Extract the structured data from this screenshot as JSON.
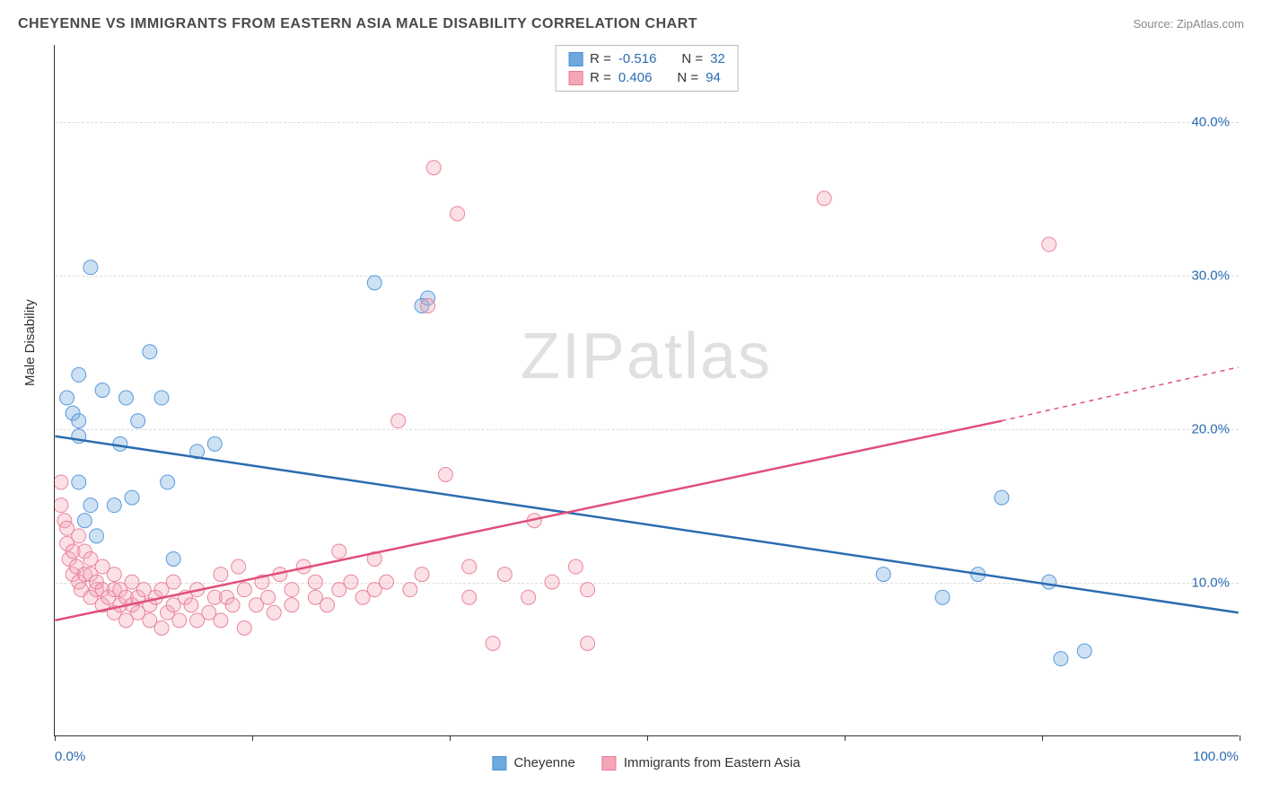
{
  "header": {
    "title": "CHEYENNE VS IMMIGRANTS FROM EASTERN ASIA MALE DISABILITY CORRELATION CHART",
    "source": "Source: ZipAtlas.com"
  },
  "watermark": {
    "prefix": "ZIP",
    "suffix": "atlas"
  },
  "chart": {
    "type": "scatter",
    "ylabel": "Male Disability",
    "xlim": [
      0,
      100
    ],
    "ylim": [
      0,
      45
    ],
    "yticks": [
      10,
      20,
      30,
      40
    ],
    "ytick_labels": [
      "10.0%",
      "20.0%",
      "30.0%",
      "40.0%"
    ],
    "xtick_positions": [
      0,
      16.7,
      33.3,
      50,
      66.7,
      83.3,
      100
    ],
    "xtick_labels_shown": {
      "0": "0.0%",
      "100": "100.0%"
    },
    "grid_color": "#dddddd",
    "axis_color": "#333333",
    "background_color": "#ffffff",
    "marker_radius": 8,
    "marker_fill_opacity": 0.35,
    "marker_stroke_opacity": 0.9,
    "line_width": 2.5,
    "label_fontsize": 15,
    "tick_color": "#2b6cb0",
    "series": [
      {
        "name": "Cheyenne",
        "color": "#6fa8dc",
        "stroke": "#4a90d9",
        "line_color": "#2b6cb0",
        "R": "-0.516",
        "N": "32",
        "trend": {
          "x1": 0,
          "y1": 19.5,
          "x2": 100,
          "y2": 8.0
        },
        "points": [
          [
            1.0,
            22.0
          ],
          [
            1.5,
            21.0
          ],
          [
            2.0,
            16.5
          ],
          [
            2.0,
            19.5
          ],
          [
            2.0,
            20.5
          ],
          [
            2.0,
            23.5
          ],
          [
            2.5,
            14.0
          ],
          [
            3.0,
            15.0
          ],
          [
            3.0,
            30.5
          ],
          [
            3.5,
            13.0
          ],
          [
            4.0,
            22.5
          ],
          [
            5.0,
            15.0
          ],
          [
            5.5,
            19.0
          ],
          [
            6.0,
            22.0
          ],
          [
            6.5,
            15.5
          ],
          [
            7.0,
            20.5
          ],
          [
            8.0,
            25.0
          ],
          [
            9.0,
            22.0
          ],
          [
            9.5,
            16.5
          ],
          [
            10.0,
            11.5
          ],
          [
            12.0,
            18.5
          ],
          [
            13.5,
            19.0
          ],
          [
            27.0,
            29.5
          ],
          [
            31.5,
            28.5
          ],
          [
            31.0,
            28.0
          ],
          [
            70.0,
            10.5
          ],
          [
            75.0,
            9.0
          ],
          [
            78.0,
            10.5
          ],
          [
            80.0,
            15.5
          ],
          [
            85.0,
            5.0
          ],
          [
            87.0,
            5.5
          ],
          [
            84.0,
            10.0
          ]
        ]
      },
      {
        "name": "Immigrants from Eastern Asia",
        "color": "#f4a6b7",
        "stroke": "#e77a94",
        "line_color": "#e04f7a",
        "R": "0.406",
        "N": "94",
        "trend": {
          "x1": 0,
          "y1": 7.5,
          "x2": 80,
          "y2": 20.5
        },
        "trend_dashed": {
          "x1": 80,
          "y1": 20.5,
          "x2": 100,
          "y2": 24.0
        },
        "points": [
          [
            0.5,
            15.0
          ],
          [
            0.5,
            16.5
          ],
          [
            0.8,
            14.0
          ],
          [
            1.0,
            12.5
          ],
          [
            1.0,
            13.5
          ],
          [
            1.2,
            11.5
          ],
          [
            1.5,
            10.5
          ],
          [
            1.5,
            12.0
          ],
          [
            1.8,
            11.0
          ],
          [
            2.0,
            10.0
          ],
          [
            2.0,
            13.0
          ],
          [
            2.2,
            9.5
          ],
          [
            2.5,
            10.5
          ],
          [
            2.5,
            12.0
          ],
          [
            3.0,
            9.0
          ],
          [
            3.0,
            10.5
          ],
          [
            3.0,
            11.5
          ],
          [
            3.5,
            9.5
          ],
          [
            3.5,
            10.0
          ],
          [
            4.0,
            8.5
          ],
          [
            4.0,
            9.5
          ],
          [
            4.0,
            11.0
          ],
          [
            4.5,
            9.0
          ],
          [
            5.0,
            8.0
          ],
          [
            5.0,
            9.5
          ],
          [
            5.0,
            10.5
          ],
          [
            5.5,
            8.5
          ],
          [
            5.5,
            9.5
          ],
          [
            6.0,
            7.5
          ],
          [
            6.0,
            9.0
          ],
          [
            6.5,
            8.5
          ],
          [
            6.5,
            10.0
          ],
          [
            7.0,
            8.0
          ],
          [
            7.0,
            9.0
          ],
          [
            7.5,
            9.5
          ],
          [
            8.0,
            7.5
          ],
          [
            8.0,
            8.5
          ],
          [
            8.5,
            9.0
          ],
          [
            9.0,
            7.0
          ],
          [
            9.0,
            9.5
          ],
          [
            9.5,
            8.0
          ],
          [
            10.0,
            8.5
          ],
          [
            10.0,
            10.0
          ],
          [
            10.5,
            7.5
          ],
          [
            11.0,
            9.0
          ],
          [
            11.5,
            8.5
          ],
          [
            12.0,
            7.5
          ],
          [
            12.0,
            9.5
          ],
          [
            13.0,
            8.0
          ],
          [
            13.5,
            9.0
          ],
          [
            14.0,
            7.5
          ],
          [
            14.0,
            10.5
          ],
          [
            14.5,
            9.0
          ],
          [
            15.0,
            8.5
          ],
          [
            15.5,
            11.0
          ],
          [
            16.0,
            7.0
          ],
          [
            16.0,
            9.5
          ],
          [
            17.0,
            8.5
          ],
          [
            17.5,
            10.0
          ],
          [
            18.0,
            9.0
          ],
          [
            18.5,
            8.0
          ],
          [
            19.0,
            10.5
          ],
          [
            20.0,
            8.5
          ],
          [
            20.0,
            9.5
          ],
          [
            21.0,
            11.0
          ],
          [
            22.0,
            9.0
          ],
          [
            22.0,
            10.0
          ],
          [
            23.0,
            8.5
          ],
          [
            24.0,
            9.5
          ],
          [
            24.0,
            12.0
          ],
          [
            25.0,
            10.0
          ],
          [
            26.0,
            9.0
          ],
          [
            27.0,
            11.5
          ],
          [
            27.0,
            9.5
          ],
          [
            28.0,
            10.0
          ],
          [
            29.0,
            20.5
          ],
          [
            30.0,
            9.5
          ],
          [
            31.0,
            10.5
          ],
          [
            31.5,
            28.0
          ],
          [
            32.0,
            37.0
          ],
          [
            33.0,
            17.0
          ],
          [
            34.0,
            34.0
          ],
          [
            35.0,
            11.0
          ],
          [
            35.0,
            9.0
          ],
          [
            37.0,
            6.0
          ],
          [
            38.0,
            10.5
          ],
          [
            40.0,
            9.0
          ],
          [
            40.5,
            14.0
          ],
          [
            42.0,
            10.0
          ],
          [
            45.0,
            6.0
          ],
          [
            44.0,
            11.0
          ],
          [
            65.0,
            35.0
          ],
          [
            45.0,
            9.5
          ],
          [
            84.0,
            32.0
          ]
        ]
      }
    ]
  },
  "legend_bottom": [
    {
      "label": "Cheyenne",
      "color": "#6fa8dc",
      "stroke": "#4a90d9"
    },
    {
      "label": "Immigrants from Eastern Asia",
      "color": "#f4a6b7",
      "stroke": "#e77a94"
    }
  ]
}
